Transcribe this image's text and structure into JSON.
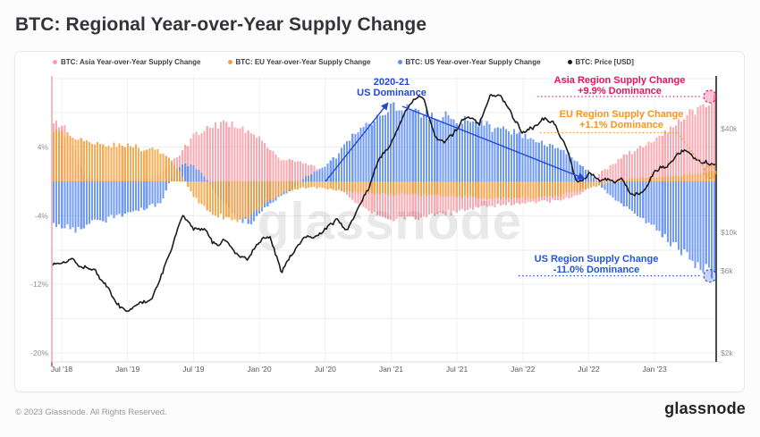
{
  "header": {
    "title": "BTC: Regional Year-over-Year Supply Change"
  },
  "legend": {
    "items": [
      {
        "label": "BTC: Asia Year-over-Year Supply Change",
        "color": "#f79fa9"
      },
      {
        "label": "BTC: EU Year-over-Year Supply Change",
        "color": "#f2a03d"
      },
      {
        "label": "BTC: US Year-over-Year Supply Change",
        "color": "#5d8df4"
      },
      {
        "label": "BTC: Price [USD]",
        "color": "#1c1c1e"
      }
    ]
  },
  "watermark": {
    "text": "glassnode"
  },
  "annotations": {
    "us_dominance": {
      "line1": "2020-21",
      "line2": "US Dominance",
      "color": "#1f49d7"
    },
    "asia": {
      "line1": "Asia Region Supply Change",
      "line2": "+9.9% Dominance",
      "value_pct": 9.9,
      "color": "#e8125f"
    },
    "eu": {
      "line1": "EU Region Supply Change",
      "line2": "+1.1% Dominance",
      "value_pct": 1.1,
      "color": "#f7941d"
    },
    "us": {
      "line1": "US Region Supply Change",
      "line2": "-11.0% Dominance",
      "value_pct": -11.0,
      "color": "#1f55d7"
    }
  },
  "chart_data": {
    "type": "bar+line",
    "x_monthly_start": "2018-07",
    "months": 60,
    "axes": {
      "y_left": {
        "unit": "%",
        "labels": [
          "4%",
          "-4%",
          "-12%",
          "-20%"
        ],
        "values": [
          4,
          -4,
          -12,
          -20
        ],
        "gridline_step_pct": 4,
        "ylim": [
          12.3,
          -21
        ]
      },
      "y_right": {
        "unit": "USD",
        "scale": "log",
        "labels": [
          "$40k",
          "$10k",
          "$6k",
          "$2k"
        ],
        "values": [
          40000,
          10000,
          6000,
          2000
        ]
      },
      "x": {
        "labels": [
          "Jul '18",
          "Jan '19",
          "Jul '19",
          "Jan '20",
          "Jul '20",
          "Jan '21",
          "Jul '21",
          "Jan '22",
          "Jul '22",
          "Jan '23"
        ],
        "month_index": [
          0,
          6,
          12,
          18,
          24,
          30,
          36,
          42,
          48,
          54
        ]
      }
    },
    "grid": true,
    "legend_position": "top",
    "series": [
      {
        "name": "BTC: Asia Year-over-Year Supply Change",
        "type": "bar",
        "unit": "%",
        "color": "#f79fa9",
        "values": [
          6.8,
          4.2,
          0.6,
          0.3,
          0.2,
          0.2,
          0.2,
          0.3,
          0.4,
          1.0,
          2.2,
          3.8,
          5.5,
          6.3,
          6.7,
          7.0,
          6.6,
          6.0,
          5.0,
          3.8,
          2.6,
          2.4,
          2.2,
          1.6,
          0.8,
          -0.6,
          -1.8,
          -2.8,
          -3.6,
          -4.2,
          -4.6,
          -4.6,
          -4.4,
          -4.2,
          -4.0,
          -3.8,
          -3.5,
          -3.3,
          -3.1,
          -3.0,
          -2.8,
          -2.7,
          -2.6,
          -2.5,
          -2.4,
          -2.3,
          -2.1,
          -1.6,
          -0.4,
          1.0,
          2.0,
          2.9,
          3.6,
          4.3,
          5.1,
          5.9,
          6.9,
          7.9,
          8.9,
          9.9
        ]
      },
      {
        "name": "BTC: EU Year-over-Year Supply Change",
        "type": "bar",
        "unit": "%",
        "color": "#f2a03d",
        "values": [
          6.0,
          5.2,
          4.8,
          4.5,
          4.4,
          4.3,
          4.2,
          4.0,
          3.8,
          3.5,
          2.2,
          0.5,
          -2.0,
          -3.2,
          -4.0,
          -4.5,
          -4.6,
          -4.2,
          -3.2,
          -2.2,
          -1.4,
          -1.0,
          -0.8,
          -0.7,
          -0.8,
          -1.0,
          -1.2,
          -1.3,
          -1.4,
          -1.5,
          -1.5,
          -1.5,
          -1.6,
          -1.6,
          -1.7,
          -1.8,
          -1.8,
          -1.9,
          -2.0,
          -2.0,
          -2.0,
          -2.0,
          -2.0,
          -1.9,
          -1.8,
          -1.7,
          -1.5,
          -1.2,
          -0.8,
          -0.4,
          -0.1,
          0.1,
          0.3,
          0.4,
          0.5,
          0.6,
          0.7,
          0.8,
          0.9,
          1.1
        ]
      },
      {
        "name": "BTC: US Year-over-Year Supply Change",
        "type": "bar",
        "unit": "%",
        "color": "#5d8df4",
        "values": [
          -5.2,
          -5.8,
          -5.2,
          -4.7,
          -4.4,
          -4.1,
          -3.7,
          -3.3,
          -3.0,
          -2.7,
          0.8,
          2.0,
          1.8,
          0.5,
          -1.5,
          -3.0,
          -4.3,
          -5.0,
          -3.8,
          -2.6,
          -1.6,
          -1.0,
          0.5,
          1.2,
          1.8,
          3.2,
          4.8,
          6.0,
          7.2,
          8.2,
          8.8,
          8.6,
          8.3,
          8.1,
          7.9,
          7.6,
          7.3,
          7.1,
          6.9,
          6.6,
          6.3,
          5.9,
          5.5,
          5.1,
          4.6,
          4.1,
          3.4,
          2.4,
          1.0,
          -0.6,
          -1.8,
          -2.8,
          -3.8,
          -4.8,
          -5.8,
          -6.8,
          -7.9,
          -9.0,
          -10.0,
          -11.0
        ]
      },
      {
        "name": "BTC: Price [USD]",
        "type": "line",
        "unit": "USD",
        "scale": "log",
        "color": "#1c1c1e",
        "values": [
          6600,
          7200,
          6500,
          6400,
          5000,
          3800,
          3500,
          3800,
          4000,
          5300,
          8000,
          12400,
          10300,
          10100,
          8300,
          9200,
          7600,
          7200,
          9300,
          9600,
          5900,
          7600,
          9400,
          9300,
          10300,
          11700,
          10700,
          13500,
          18000,
          27000,
          33000,
          46000,
          57000,
          58000,
          37000,
          34000,
          40000,
          47000,
          43000,
          61000,
          59000,
          47000,
          38000,
          41000,
          45000,
          39000,
          30000,
          20000,
          22500,
          20000,
          19400,
          20400,
          16200,
          16600,
          23000,
          23400,
          28000,
          29200,
          27000,
          26800
        ]
      }
    ]
  },
  "footer": {
    "copyright": "© 2023 Glassnode. All Rights Reserved.",
    "logo": "glassnode"
  }
}
